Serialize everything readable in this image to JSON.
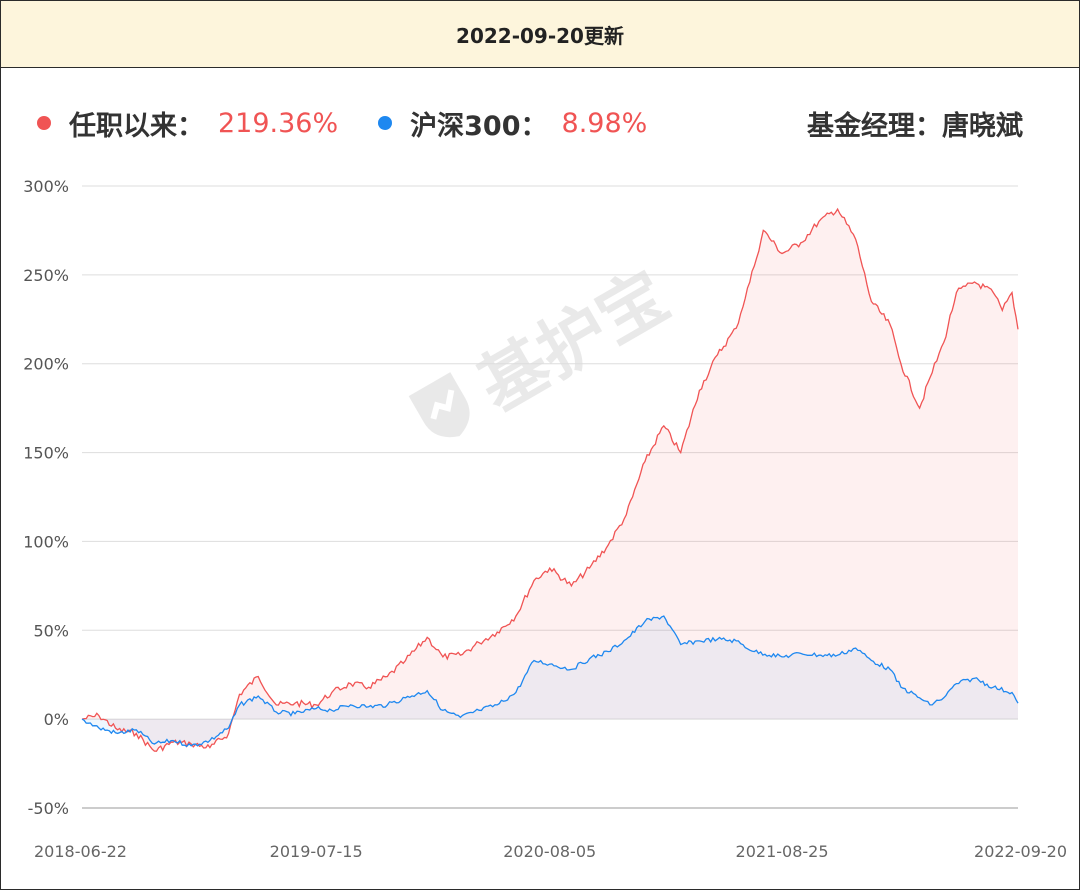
{
  "header": {
    "title": "2022-09-20更新"
  },
  "legend": {
    "fund": {
      "label": "任职以来：",
      "value": "219.36%",
      "color": "#f05454"
    },
    "index": {
      "label": "沪深300：",
      "value": "8.98%",
      "color": "#1e88f0"
    },
    "manager": {
      "label": "基金经理：",
      "name": "唐晓斌"
    }
  },
  "watermark": {
    "text": "基护宝",
    "icon": "shield-logo-icon"
  },
  "chart_data": {
    "type": "line",
    "x_ticks": [
      "2018-06-22",
      "2019-07-15",
      "2020-08-05",
      "2021-08-25",
      "2022-09-20"
    ],
    "y_ticks": [
      "300%",
      "250%",
      "200%",
      "150%",
      "100%",
      "50%",
      "0%",
      "-50%"
    ],
    "ylim": [
      -50,
      300
    ],
    "xlim": [
      "2018-06-22",
      "2022-09-20"
    ],
    "grid": true,
    "series": [
      {
        "name": "任职以来",
        "color": "#f05454",
        "points": [
          [
            "2018-06-22",
            0
          ],
          [
            "2018-07-20",
            2
          ],
          [
            "2018-08-20",
            -6
          ],
          [
            "2018-09-20",
            -8
          ],
          [
            "2018-10-20",
            -18
          ],
          [
            "2018-11-20",
            -13
          ],
          [
            "2018-12-20",
            -14
          ],
          [
            "2019-01-20",
            -16
          ],
          [
            "2019-02-20",
            -8
          ],
          [
            "2019-03-10",
            14
          ],
          [
            "2019-04-10",
            24
          ],
          [
            "2019-05-10",
            8
          ],
          [
            "2019-06-10",
            9
          ],
          [
            "2019-07-15",
            8
          ],
          [
            "2019-08-10",
            15
          ],
          [
            "2019-09-10",
            20
          ],
          [
            "2019-10-10",
            18
          ],
          [
            "2019-11-10",
            24
          ],
          [
            "2019-12-10",
            33
          ],
          [
            "2020-01-15",
            46
          ],
          [
            "2020-02-10",
            35
          ],
          [
            "2020-03-10",
            36
          ],
          [
            "2020-04-10",
            43
          ],
          [
            "2020-05-10",
            49
          ],
          [
            "2020-06-10",
            58
          ],
          [
            "2020-07-10",
            78
          ],
          [
            "2020-08-05",
            85
          ],
          [
            "2020-09-10",
            75
          ],
          [
            "2020-10-10",
            85
          ],
          [
            "2020-11-10",
            98
          ],
          [
            "2020-12-10",
            115
          ],
          [
            "2021-01-10",
            145
          ],
          [
            "2021-02-10",
            165
          ],
          [
            "2021-03-10",
            150
          ],
          [
            "2021-04-10",
            185
          ],
          [
            "2021-05-10",
            205
          ],
          [
            "2021-06-10",
            220
          ],
          [
            "2021-07-10",
            255
          ],
          [
            "2021-07-25",
            275
          ],
          [
            "2021-08-25",
            262
          ],
          [
            "2021-09-25",
            268
          ],
          [
            "2021-10-25",
            280
          ],
          [
            "2021-11-25",
            287
          ],
          [
            "2021-12-25",
            270
          ],
          [
            "2022-01-20",
            235
          ],
          [
            "2022-02-20",
            222
          ],
          [
            "2022-03-10",
            200
          ],
          [
            "2022-04-10",
            175
          ],
          [
            "2022-04-27",
            192
          ],
          [
            "2022-05-20",
            212
          ],
          [
            "2022-06-10",
            240
          ],
          [
            "2022-07-10",
            246
          ],
          [
            "2022-08-10",
            240
          ],
          [
            "2022-08-25",
            230
          ],
          [
            "2022-09-10",
            240
          ],
          [
            "2022-09-20",
            219.36
          ]
        ]
      },
      {
        "name": "沪深300",
        "color": "#1e88f0",
        "points": [
          [
            "2018-06-22",
            0
          ],
          [
            "2018-07-20",
            -5
          ],
          [
            "2018-08-20",
            -8
          ],
          [
            "2018-09-20",
            -6
          ],
          [
            "2018-10-20",
            -14
          ],
          [
            "2018-11-20",
            -12
          ],
          [
            "2018-12-20",
            -15
          ],
          [
            "2019-01-20",
            -12
          ],
          [
            "2019-02-20",
            -5
          ],
          [
            "2019-03-10",
            8
          ],
          [
            "2019-04-10",
            13
          ],
          [
            "2019-05-10",
            4
          ],
          [
            "2019-06-10",
            3
          ],
          [
            "2019-07-15",
            6
          ],
          [
            "2019-08-10",
            5
          ],
          [
            "2019-09-10",
            8
          ],
          [
            "2019-10-10",
            7
          ],
          [
            "2019-11-10",
            8
          ],
          [
            "2019-12-10",
            12
          ],
          [
            "2020-01-15",
            16
          ],
          [
            "2020-02-10",
            5
          ],
          [
            "2020-03-10",
            1
          ],
          [
            "2020-04-10",
            5
          ],
          [
            "2020-05-10",
            8
          ],
          [
            "2020-06-10",
            15
          ],
          [
            "2020-07-10",
            33
          ],
          [
            "2020-08-05",
            31
          ],
          [
            "2020-09-10",
            28
          ],
          [
            "2020-10-10",
            34
          ],
          [
            "2020-11-10",
            38
          ],
          [
            "2020-12-10",
            45
          ],
          [
            "2021-01-10",
            55
          ],
          [
            "2021-02-10",
            58
          ],
          [
            "2021-03-10",
            42
          ],
          [
            "2021-04-10",
            44
          ],
          [
            "2021-05-10",
            45
          ],
          [
            "2021-06-10",
            44
          ],
          [
            "2021-07-10",
            38
          ],
          [
            "2021-08-25",
            35
          ],
          [
            "2021-09-25",
            37
          ],
          [
            "2021-10-25",
            36
          ],
          [
            "2021-11-25",
            36
          ],
          [
            "2021-12-25",
            40
          ],
          [
            "2022-01-20",
            33
          ],
          [
            "2022-02-20",
            28
          ],
          [
            "2022-03-10",
            18
          ],
          [
            "2022-04-10",
            12
          ],
          [
            "2022-04-27",
            8
          ],
          [
            "2022-05-20",
            12
          ],
          [
            "2022-06-10",
            20
          ],
          [
            "2022-07-10",
            23
          ],
          [
            "2022-08-10",
            18
          ],
          [
            "2022-09-10",
            15
          ],
          [
            "2022-09-20",
            8.98
          ]
        ]
      }
    ]
  }
}
